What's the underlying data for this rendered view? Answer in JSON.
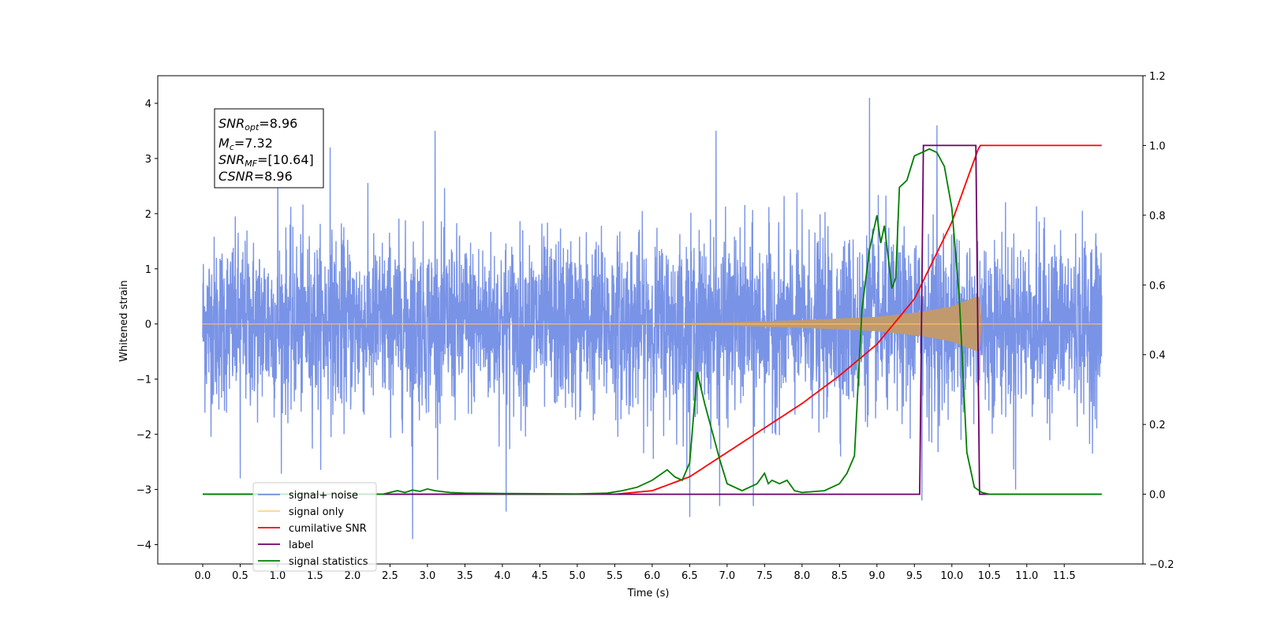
{
  "chart_data": {
    "type": "line",
    "title": "",
    "xlabel": "Time (s)",
    "ylabel": "Whitened strain",
    "xlim": [
      -0.6,
      12.55
    ],
    "ylim": [
      -4.35,
      4.5
    ],
    "y2lim": [
      -0.2,
      1.2
    ],
    "x_ticks": [
      "0.0",
      "0.5",
      "1.0",
      "1.5",
      "2.0",
      "2.5",
      "3.0",
      "3.5",
      "4.0",
      "4.5",
      "5.0",
      "5.5",
      "6.0",
      "6.5",
      "7.0",
      "7.5",
      "8.0",
      "8.5",
      "9.0",
      "9.5",
      "10.0",
      "10.5",
      "11.0",
      "11.5"
    ],
    "y_ticks": [
      "4",
      "3",
      "2",
      "1",
      "0",
      "−1",
      "−2",
      "−3",
      "−4"
    ],
    "y2_ticks": [
      "1.2",
      "1.0",
      "0.8",
      "0.6",
      "0.4",
      "0.2",
      "0.0",
      "−0.2"
    ],
    "grid": false,
    "legend_position": "bottom-left",
    "colors": {
      "signal_noise": "#5b7be0",
      "signal_only": "#ffbf60",
      "cumulative_snr": "#ff0000",
      "label": "#6a006a",
      "signal_statistics": "#007f00"
    },
    "annotation": {
      "snr_opt": {
        "main": "SNR",
        "sub": "opt",
        "value": "=8.96"
      },
      "mc": {
        "main": "M",
        "sub": "c",
        "value": "=7.32"
      },
      "snr_mf": {
        "main": "SNR",
        "sub": "MF",
        "value": "=[10.64]"
      },
      "csnr": {
        "main": "CSNR",
        "value": "=8.96"
      }
    },
    "series": [
      {
        "name": "signal+ noise",
        "axis": "left",
        "note_shape": "noise std ~0.75, spikes up to 4.1 near t=8.9",
        "x_range": [
          0,
          12
        ],
        "spikes": [
          [
            0.5,
            -2.8
          ],
          [
            1.0,
            2.9
          ],
          [
            1.7,
            3.2
          ],
          [
            2.8,
            -3.9
          ],
          [
            3.1,
            3.5
          ],
          [
            4.05,
            -3.4
          ],
          [
            6.5,
            -3.5
          ],
          [
            6.85,
            3.5
          ],
          [
            6.9,
            -3.3
          ],
          [
            7.35,
            -3.3
          ],
          [
            8.9,
            4.1
          ],
          [
            9.6,
            -3.2
          ],
          [
            9.8,
            3.6
          ],
          [
            10.85,
            -3.0
          ]
        ]
      },
      {
        "name": "signal only",
        "axis": "left",
        "envelope": [
          [
            0,
            0
          ],
          [
            6.0,
            0.005
          ],
          [
            7.0,
            0.03
          ],
          [
            8.0,
            0.07
          ],
          [
            9.0,
            0.13
          ],
          [
            9.6,
            0.22
          ],
          [
            10.0,
            0.32
          ],
          [
            10.3,
            0.48
          ],
          [
            10.37,
            0.5
          ],
          [
            10.4,
            0.0
          ],
          [
            12,
            0.0
          ]
        ]
      },
      {
        "name": "cumilative SNR",
        "axis": "right",
        "x": [
          0,
          5.5,
          6.0,
          6.5,
          7.0,
          7.5,
          8.0,
          8.5,
          9.0,
          9.5,
          10.0,
          10.2,
          10.37,
          10.4,
          12.0
        ],
        "y": [
          0,
          0,
          0.01,
          0.05,
          0.12,
          0.19,
          0.26,
          0.34,
          0.43,
          0.56,
          0.78,
          0.9,
          1.0,
          1.0,
          1.0
        ]
      },
      {
        "name": "label",
        "axis": "right",
        "x": [
          0,
          9.57,
          9.62,
          10.32,
          10.37,
          12.0
        ],
        "y": [
          0,
          0,
          1,
          1,
          0,
          0
        ]
      },
      {
        "name": "signal statistics",
        "axis": "right",
        "x": [
          0,
          2.4,
          2.6,
          2.7,
          2.8,
          2.9,
          3.0,
          3.1,
          3.3,
          3.5,
          4.0,
          5.0,
          5.4,
          5.6,
          5.8,
          6.0,
          6.2,
          6.3,
          6.4,
          6.5,
          6.6,
          6.7,
          6.8,
          6.9,
          7.0,
          7.2,
          7.4,
          7.5,
          7.55,
          7.6,
          7.7,
          7.8,
          7.9,
          8.0,
          8.3,
          8.5,
          8.6,
          8.7,
          8.8,
          8.9,
          9.0,
          9.05,
          9.1,
          9.2,
          9.25,
          9.3,
          9.4,
          9.5,
          9.6,
          9.7,
          9.8,
          9.9,
          10.0,
          10.1,
          10.2,
          10.3,
          10.4,
          10.5,
          12.0
        ],
        "y": [
          0,
          0,
          0.01,
          0.005,
          0.012,
          0.008,
          0.015,
          0.01,
          0.005,
          0.003,
          0.002,
          0.001,
          0.003,
          0.01,
          0.02,
          0.04,
          0.07,
          0.05,
          0.04,
          0.09,
          0.35,
          0.26,
          0.18,
          0.1,
          0.03,
          0.01,
          0.03,
          0.06,
          0.03,
          0.04,
          0.03,
          0.04,
          0.01,
          0.005,
          0.01,
          0.03,
          0.06,
          0.11,
          0.53,
          0.7,
          0.8,
          0.72,
          0.77,
          0.59,
          0.62,
          0.88,
          0.9,
          0.97,
          0.98,
          0.99,
          0.98,
          0.94,
          0.82,
          0.56,
          0.12,
          0.02,
          0.005,
          0.0,
          0.0
        ]
      }
    ]
  }
}
